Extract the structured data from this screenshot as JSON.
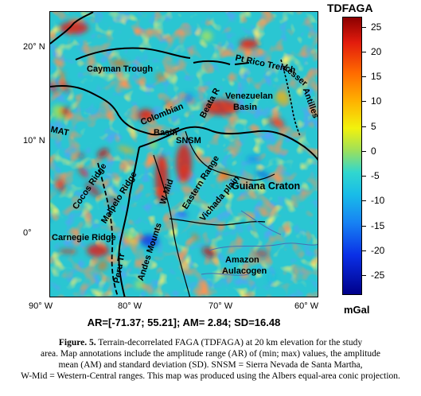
{
  "colorbar": {
    "title": "TDFAGA",
    "unit": "mGal",
    "ticks": [
      "25",
      "20",
      "15",
      "10",
      "5",
      "0",
      "-5",
      "-10",
      "-15",
      "-20",
      "-25"
    ],
    "range": [
      -29,
      27
    ],
    "colors": [
      "#00008a",
      "#0a2fe6",
      "#1783f3",
      "#19bce8",
      "#30d7cf",
      "#9ee05a",
      "#f2f20d",
      "#ffb000",
      "#ff6a00",
      "#e21b0d",
      "#8b0000"
    ]
  },
  "axes": {
    "lat_labels": [
      "20° N",
      "10° N",
      "0°"
    ],
    "lon_labels": [
      "90° W",
      "80° W",
      "70° W",
      "60° W"
    ]
  },
  "map_labels": [
    "Cayman Trough",
    "Pt Rico Trench",
    "Lesser",
    "Antilles",
    "Venezuelan",
    "Basin",
    "Beata R",
    "Colombian",
    "Basin",
    "MAT",
    "SNSM",
    "Cocos Ridge",
    "Eastern Range",
    "Malpelo Ridge",
    "W-Mid",
    "Vichada plain",
    "Guiana Craton",
    "Carnegie Ridge",
    "Andes Mounts",
    "Peru Tr",
    "Amazon",
    "Aulacogen"
  ],
  "stats_line": "AR=[-71.37; 55.21]; AM= 2.84; SD=16.48",
  "caption": {
    "figure_label": "Figure. 5.",
    "line1_rest": " Terrain-decorrelated FAGA (TDFAGA) at 20 km elevation for the study",
    "line2": "area. Map annotations include the amplitude range (AR) of (min; max) values, the amplitude",
    "line3": "mean (AM) and standard deviation (SD). SNSM = Sierra Nevada de Santa Martha,",
    "line4": "W-Mid = Western-Central ranges. This map was produced using the Albers equal-area conic projection."
  }
}
